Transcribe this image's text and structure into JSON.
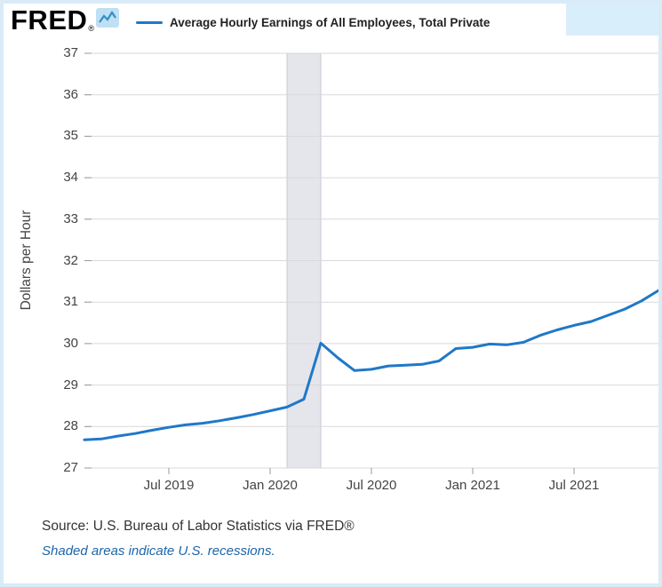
{
  "header": {
    "logo_text": "FRED",
    "registered": "®",
    "series_label": "Average Hourly Earnings of All Employees, Total Private"
  },
  "chart_data": {
    "type": "line",
    "title": "Average Hourly Earnings of All Employees, Total Private",
    "xlabel": "",
    "ylabel": "Dollars per Hour",
    "ylim": [
      27,
      37
    ],
    "y_ticks": [
      27,
      28,
      29,
      30,
      31,
      32,
      33,
      34,
      35,
      36,
      37
    ],
    "grid": "horizontal",
    "legend_position": "top",
    "x": [
      "2019-02",
      "2019-03",
      "2019-04",
      "2019-05",
      "2019-06",
      "2019-07",
      "2019-08",
      "2019-09",
      "2019-10",
      "2019-11",
      "2019-12",
      "2020-01",
      "2020-02",
      "2020-03",
      "2020-04",
      "2020-05",
      "2020-06",
      "2020-07",
      "2020-08",
      "2020-09",
      "2020-10",
      "2020-11",
      "2020-12",
      "2021-01",
      "2021-02",
      "2021-03",
      "2021-04",
      "2021-05",
      "2021-06",
      "2021-07",
      "2021-08",
      "2021-09",
      "2021-10",
      "2021-11",
      "2021-12"
    ],
    "values": [
      27.68,
      27.7,
      27.77,
      27.83,
      27.91,
      27.98,
      28.04,
      28.08,
      28.14,
      28.21,
      28.29,
      28.38,
      28.47,
      28.66,
      30.01,
      29.66,
      29.35,
      29.38,
      29.46,
      29.48,
      29.5,
      29.58,
      29.88,
      29.91,
      29.99,
      29.97,
      30.03,
      30.2,
      30.33,
      30.44,
      30.53,
      30.68,
      30.83,
      31.03,
      31.28
    ],
    "x_ticks": [
      {
        "label": "Jul 2019",
        "month": "2019-07"
      },
      {
        "label": "Jan 2020",
        "month": "2020-01"
      },
      {
        "label": "Jul 2020",
        "month": "2020-07"
      },
      {
        "label": "Jan 2021",
        "month": "2021-01"
      },
      {
        "label": "Jul 2021",
        "month": "2021-07"
      }
    ],
    "recession_bands": [
      {
        "start": "2020-02",
        "end": "2020-04"
      }
    ],
    "line_color": "#1f78c8"
  },
  "footer": {
    "source_text": "Source: U.S. Bureau of Labor Statistics via FRED®",
    "recession_note": "Shaded areas indicate U.S. recessions."
  },
  "colors": {
    "line": "#1f78c8",
    "gridline": "#d9d9d9",
    "tick": "#999999",
    "axis_text": "#444444",
    "recession_fill": "#e5e5ec",
    "recession_edge": "#c9c9d4",
    "frame": "#d8ebf7",
    "corner_bg": "#d9eefb",
    "link": "#1d66a9",
    "logo_icon_bg": "#bfe0f2",
    "logo_icon_line": "#2f8fc9"
  }
}
